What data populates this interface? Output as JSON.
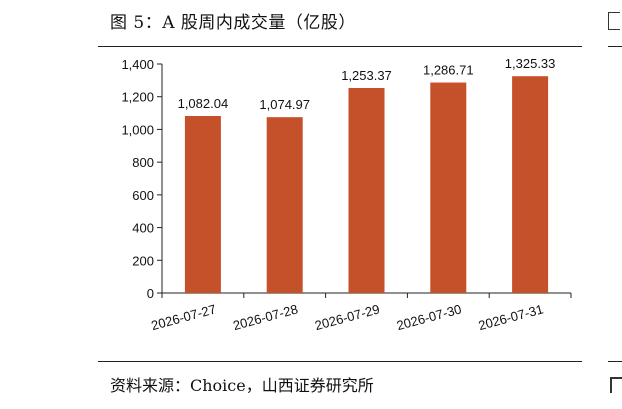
{
  "title": "图 5：A 股周内成交量（亿股）",
  "source": "资料来源：Choice，山西证券研究所",
  "colors": {
    "bar": "#c5512b",
    "axis": "#222222"
  },
  "chart_data": {
    "type": "bar",
    "title": "图 5：A 股周内成交量（亿股）",
    "xlabel": "",
    "ylabel": "",
    "categories": [
      "2026-07-27",
      "2026-07-28",
      "2026-07-29",
      "2026-07-30",
      "2026-07-31"
    ],
    "values": [
      1082.04,
      1074.97,
      1253.37,
      1286.71,
      1325.33
    ],
    "data_labels": [
      "1,082.04",
      "1,074.97",
      "1,253.37",
      "1,286.71",
      "1,325.33"
    ],
    "ylim": [
      0,
      1400
    ],
    "yticks": [
      0,
      200,
      400,
      600,
      800,
      1000,
      1200,
      1400
    ],
    "ytick_labels": [
      "0",
      "200",
      "400",
      "600",
      "800",
      "1,000",
      "1,200",
      "1,400"
    ],
    "grid": false,
    "legend": "none"
  }
}
